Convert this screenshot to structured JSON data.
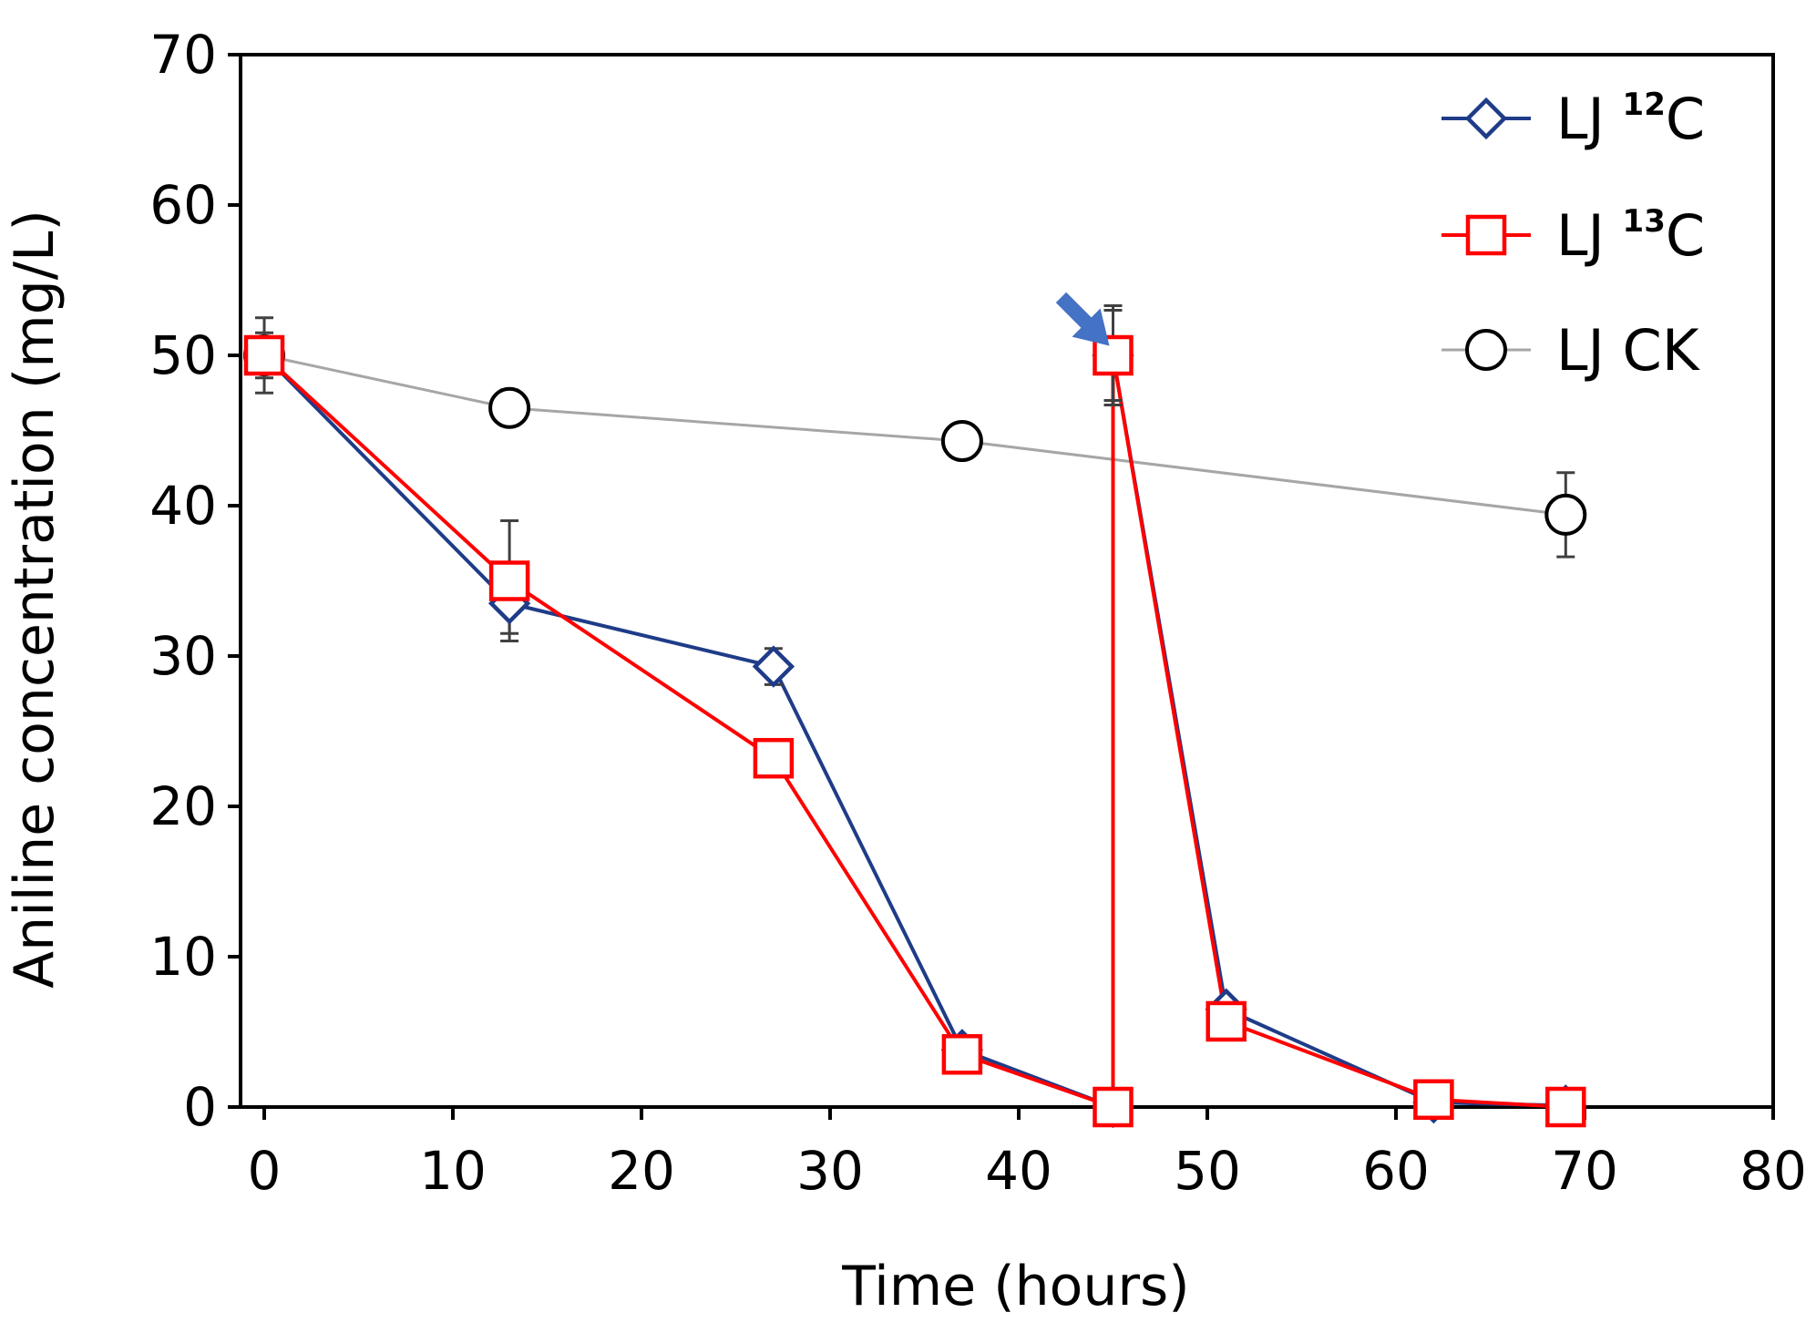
{
  "chart_data": {
    "type": "line",
    "title": "",
    "xlabel": "Time (hours)",
    "ylabel": "Aniline concentration (mg/L)",
    "xlim": [
      -1,
      80
    ],
    "ylim": [
      0,
      70
    ],
    "x_ticks": [
      "0",
      "10",
      "20",
      "30",
      "40",
      "50",
      "60",
      "70",
      "80"
    ],
    "y_ticks": [
      "0",
      "10",
      "20",
      "30",
      "40",
      "50",
      "60",
      "70"
    ],
    "legend_position": "top-right",
    "annotation": {
      "type": "arrow",
      "points_to": {
        "x": 45,
        "y": 51
      },
      "color": "#4472c4"
    },
    "series": [
      {
        "name": "LJ ¹²C",
        "legend_base": "LJ ",
        "legend_sup": "12",
        "legend_tail": "C",
        "marker": "diamond",
        "color": "#1f3c88",
        "x": [
          0,
          13,
          27,
          37,
          45,
          45,
          51,
          62,
          69
        ],
        "y": [
          50,
          33.5,
          29.3,
          3.8,
          0,
          50,
          6.5,
          0.3,
          0.1
        ],
        "error": [
          1.5,
          2,
          1.2,
          0.5,
          0,
          3,
          0.5,
          0.2,
          0.2
        ]
      },
      {
        "name": "LJ ¹³C",
        "legend_base": "LJ ",
        "legend_sup": "13",
        "legend_tail": "C",
        "marker": "square",
        "color": "#ff0000",
        "x": [
          0,
          13,
          27,
          37,
          45,
          45,
          51,
          62,
          69
        ],
        "y": [
          50,
          35,
          23.2,
          3.5,
          0,
          50,
          5.7,
          0.5,
          0
        ],
        "error": [
          1.2,
          4,
          1.2,
          0.5,
          0,
          3.3,
          0.5,
          0.2,
          0.2
        ]
      },
      {
        "name": "LJ CK",
        "legend_base": "LJ CK",
        "legend_sup": "",
        "legend_tail": "",
        "marker": "circle",
        "color": "#a6a6a6",
        "marker_stroke": "#000000",
        "x": [
          0,
          13,
          37,
          69
        ],
        "y": [
          50,
          46.5,
          44.3,
          39.4
        ],
        "error": [
          2.5,
          1.2,
          0,
          2.8
        ]
      }
    ]
  }
}
